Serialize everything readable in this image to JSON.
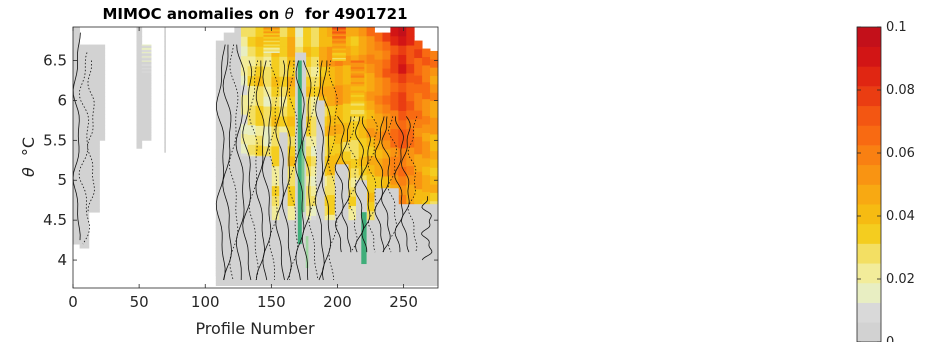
{
  "chart_data": {
    "type": "heatmap",
    "title_text": "MIMOC anomalies on",
    "title_symbol": "θ",
    "title_suffix": "for 4901721",
    "xlabel": "Profile Number",
    "ylabel_symbol": "θ",
    "ylabel_unit": "°C",
    "xlim": [
      0,
      276
    ],
    "ylim": [
      3.65,
      6.92
    ],
    "xticks": [
      0,
      50,
      100,
      150,
      200,
      250
    ],
    "yticks": [
      4,
      4.5,
      5,
      5.5,
      6,
      6.5
    ],
    "colorbar": {
      "range": [
        0,
        0.1
      ],
      "ticks": [
        "0",
        "0.02",
        "0.04",
        "0.06",
        "0.08",
        "0.1"
      ],
      "tick_values": [
        0,
        0.02,
        0.04,
        0.06,
        0.08,
        0.1
      ],
      "colors": [
        "#d2d2d2",
        "#d9d9d9",
        "#e8eec2",
        "#f2ec9a",
        "#f3df63",
        "#f4cd1f",
        "#f6bb12",
        "#f8a912",
        "#f99412",
        "#f98012",
        "#f86a12",
        "#f35612",
        "#ea3d12",
        "#e02612",
        "#d21515",
        "#c3101a"
      ]
    },
    "columns": [
      {
        "x0": 0,
        "x1": 5,
        "ytop": 6.92,
        "ybot": 4.2,
        "v": 0.0
      },
      {
        "x0": 5,
        "x1": 12,
        "ytop": 6.7,
        "ybot": 4.15,
        "v": 0.0
      },
      {
        "x0": 12,
        "x1": 24,
        "ytop": 6.7,
        "ybot": 5.5,
        "v": 0.003
      },
      {
        "x0": 12,
        "x1": 20,
        "ytop": 5.5,
        "ybot": 4.6,
        "v": 0.001
      },
      {
        "x0": 48,
        "x1": 52,
        "ytop": 6.92,
        "ybot": 5.4,
        "v": 0.0
      },
      {
        "x0": 52,
        "x1": 59,
        "ytop": 6.7,
        "ybot": 6.35,
        "v": 0.012
      },
      {
        "x0": 52,
        "x1": 59,
        "ytop": 6.35,
        "ybot": 5.5,
        "v": 0.002
      },
      {
        "x0": 69,
        "x1": 70,
        "ytop": 6.92,
        "ybot": 5.35,
        "v": 0.0
      },
      {
        "x0": 108,
        "x1": 114,
        "ytop": 6.75,
        "ybot": 3.8,
        "v": 0.0
      },
      {
        "x0": 114,
        "x1": 122,
        "ytop": 6.85,
        "ybot": 3.8,
        "v": 0.002
      },
      {
        "x0": 122,
        "x1": 127,
        "ytop": 6.92,
        "ybot": 3.78,
        "v": 0.004
      },
      {
        "x0": 127,
        "x1": 132,
        "ytop": 6.92,
        "ybot": 3.75,
        "v": 0.02
      },
      {
        "x0": 132,
        "x1": 138,
        "ytop": 6.92,
        "ybot": 3.72,
        "v": 0.03
      },
      {
        "x0": 138,
        "x1": 144,
        "ytop": 6.92,
        "ybot": 3.7,
        "v": 0.036
      },
      {
        "x0": 144,
        "x1": 150,
        "ytop": 6.92,
        "ybot": 3.68,
        "v": 0.028
      },
      {
        "x0": 150,
        "x1": 156,
        "ytop": 6.92,
        "ybot": 3.68,
        "v": 0.04
      },
      {
        "x0": 156,
        "x1": 162,
        "ytop": 6.92,
        "ybot": 3.68,
        "v": 0.032
      },
      {
        "x0": 162,
        "x1": 168,
        "ytop": 6.92,
        "ybot": 3.68,
        "v": 0.045
      },
      {
        "x0": 168,
        "x1": 174,
        "ytop": 6.92,
        "ybot": 3.68,
        "v": 0.02
      },
      {
        "x0": 174,
        "x1": 180,
        "ytop": 6.92,
        "ybot": 3.68,
        "v": 0.038
      },
      {
        "x0": 180,
        "x1": 186,
        "ytop": 6.92,
        "ybot": 3.68,
        "v": 0.03
      },
      {
        "x0": 186,
        "x1": 192,
        "ytop": 6.92,
        "ybot": 3.68,
        "v": 0.044
      },
      {
        "x0": 192,
        "x1": 198,
        "ytop": 6.92,
        "ybot": 3.7,
        "v": 0.05
      },
      {
        "x0": 198,
        "x1": 204,
        "ytop": 6.92,
        "ybot": 3.75,
        "v": 0.055
      },
      {
        "x0": 204,
        "x1": 210,
        "ytop": 6.92,
        "ybot": 3.8,
        "v": 0.048
      },
      {
        "x0": 210,
        "x1": 216,
        "ytop": 6.92,
        "ybot": 3.85,
        "v": 0.042
      },
      {
        "x0": 216,
        "x1": 222,
        "ytop": 6.92,
        "ybot": 3.9,
        "v": 0.05
      },
      {
        "x0": 222,
        "x1": 228,
        "ytop": 6.92,
        "ybot": 3.92,
        "v": 0.058
      },
      {
        "x0": 228,
        "x1": 234,
        "ytop": 6.85,
        "ybot": 3.92,
        "v": 0.062
      },
      {
        "x0": 234,
        "x1": 240,
        "ytop": 6.85,
        "ybot": 3.92,
        "v": 0.07
      },
      {
        "x0": 240,
        "x1": 246,
        "ytop": 6.92,
        "ybot": 3.9,
        "v": 0.082
      },
      {
        "x0": 246,
        "x1": 252,
        "ytop": 6.92,
        "ybot": 3.88,
        "v": 0.09
      },
      {
        "x0": 252,
        "x1": 258,
        "ytop": 6.92,
        "ybot": 3.9,
        "v": 0.08
      },
      {
        "x0": 258,
        "x1": 264,
        "ytop": 6.75,
        "ybot": 3.9,
        "v": 0.072
      },
      {
        "x0": 264,
        "x1": 270,
        "ytop": 6.65,
        "ybot": 3.9,
        "v": 0.066
      },
      {
        "x0": 270,
        "x1": 276,
        "ytop": 6.62,
        "ybot": 3.9,
        "v": 0.058
      }
    ],
    "patches": [
      {
        "x0": 108,
        "x1": 276,
        "ytop": 4.5,
        "ybot": 3.68,
        "v": 0.0
      },
      {
        "x0": 120,
        "x1": 150,
        "ytop": 5.3,
        "ybot": 4.5,
        "v": 0.001
      },
      {
        "x0": 156,
        "x1": 162,
        "ytop": 5.6,
        "ybot": 4.5,
        "v": 0.0
      },
      {
        "x0": 168,
        "x1": 176,
        "ytop": 6.6,
        "ybot": 3.9,
        "v": 0.0
      },
      {
        "x0": 184,
        "x1": 190,
        "ytop": 6.0,
        "ybot": 4.5,
        "v": 0.0
      },
      {
        "x0": 198,
        "x1": 208,
        "ytop": 5.2,
        "ybot": 4.5,
        "v": 0.002
      },
      {
        "x0": 214,
        "x1": 222,
        "ytop": 5.0,
        "ybot": 4.5,
        "v": 0.004
      },
      {
        "x0": 228,
        "x1": 246,
        "ytop": 4.9,
        "ybot": 4.5,
        "v": 0.001
      },
      {
        "x0": 246,
        "x1": 276,
        "ytop": 4.7,
        "ybot": 4.4,
        "v": 0.003
      },
      {
        "x0": 144,
        "x1": 156,
        "ytop": 6.92,
        "ybot": 6.6,
        "v": 0.05
      },
      {
        "x0": 196,
        "x1": 206,
        "ytop": 6.92,
        "ybot": 6.5,
        "v": 0.07
      },
      {
        "x0": 210,
        "x1": 220,
        "ytop": 6.5,
        "ybot": 5.8,
        "v": 0.06
      }
    ],
    "negative_patches": [
      {
        "x0": 170,
        "x1": 173,
        "ytop": 6.5,
        "ybot": 4.2,
        "color": "#3fae7a"
      },
      {
        "x0": 173,
        "x1": 175,
        "ytop": 5.5,
        "ybot": 4.6,
        "color": "#7fc890"
      },
      {
        "x0": 218,
        "x1": 222,
        "ytop": 4.6,
        "ybot": 3.95,
        "color": "#3fae7a"
      },
      {
        "x0": 176,
        "x1": 178,
        "ytop": 4.3,
        "ybot": 3.9,
        "color": "#9fd6a0"
      }
    ]
  }
}
